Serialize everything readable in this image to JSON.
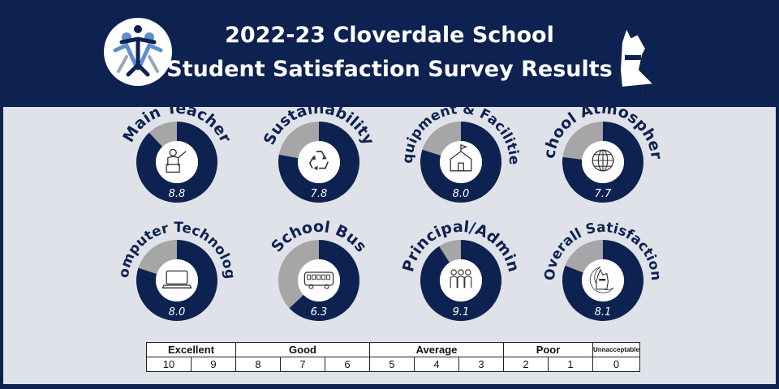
{
  "header": {
    "title_line1": "2022-23 Cloverdale School",
    "title_line2": "Student Satisfaction Survey Results"
  },
  "colors": {
    "background": "#0d2250",
    "panel": "#dfe2e8",
    "ring_fill": "#0d2250",
    "ring_remainder": "#a6a6a6"
  },
  "chart_data": {
    "type": "pie",
    "max": 10,
    "items": [
      {
        "label": "Main Teacher",
        "value": 8.8,
        "value_label": "8.8",
        "icon": "teacher-icon"
      },
      {
        "label": "Sustainability",
        "value": 7.8,
        "value_label": "7.8",
        "icon": "recycle-icon"
      },
      {
        "label": "Equipment & Facilities",
        "value": 8.0,
        "value_label": "8.0",
        "icon": "school-house-icon"
      },
      {
        "label": "School Atmosphere",
        "value": 7.7,
        "value_label": "7.7",
        "icon": "globe-icon"
      },
      {
        "label": "Computer Technology",
        "value": 8.0,
        "value_label": "8.0",
        "icon": "laptop-icon"
      },
      {
        "label": "School Bus",
        "value": 6.3,
        "value_label": "6.3",
        "icon": "bus-icon"
      },
      {
        "label": "Principal/Admin",
        "value": 9.1,
        "value_label": "9.1",
        "icon": "people-icon"
      },
      {
        "label": "Overall Satisfaction",
        "value": 8.1,
        "value_label": "8.1",
        "icon": "wolf-mascot-icon"
      }
    ]
  },
  "scale_legend": {
    "groups": [
      "Excellent",
      "Good",
      "Average",
      "Poor",
      "Unnacceptable"
    ],
    "scores": [
      "10",
      "9",
      "8",
      "7",
      "6",
      "5",
      "4",
      "3",
      "2",
      "1",
      "0"
    ]
  }
}
